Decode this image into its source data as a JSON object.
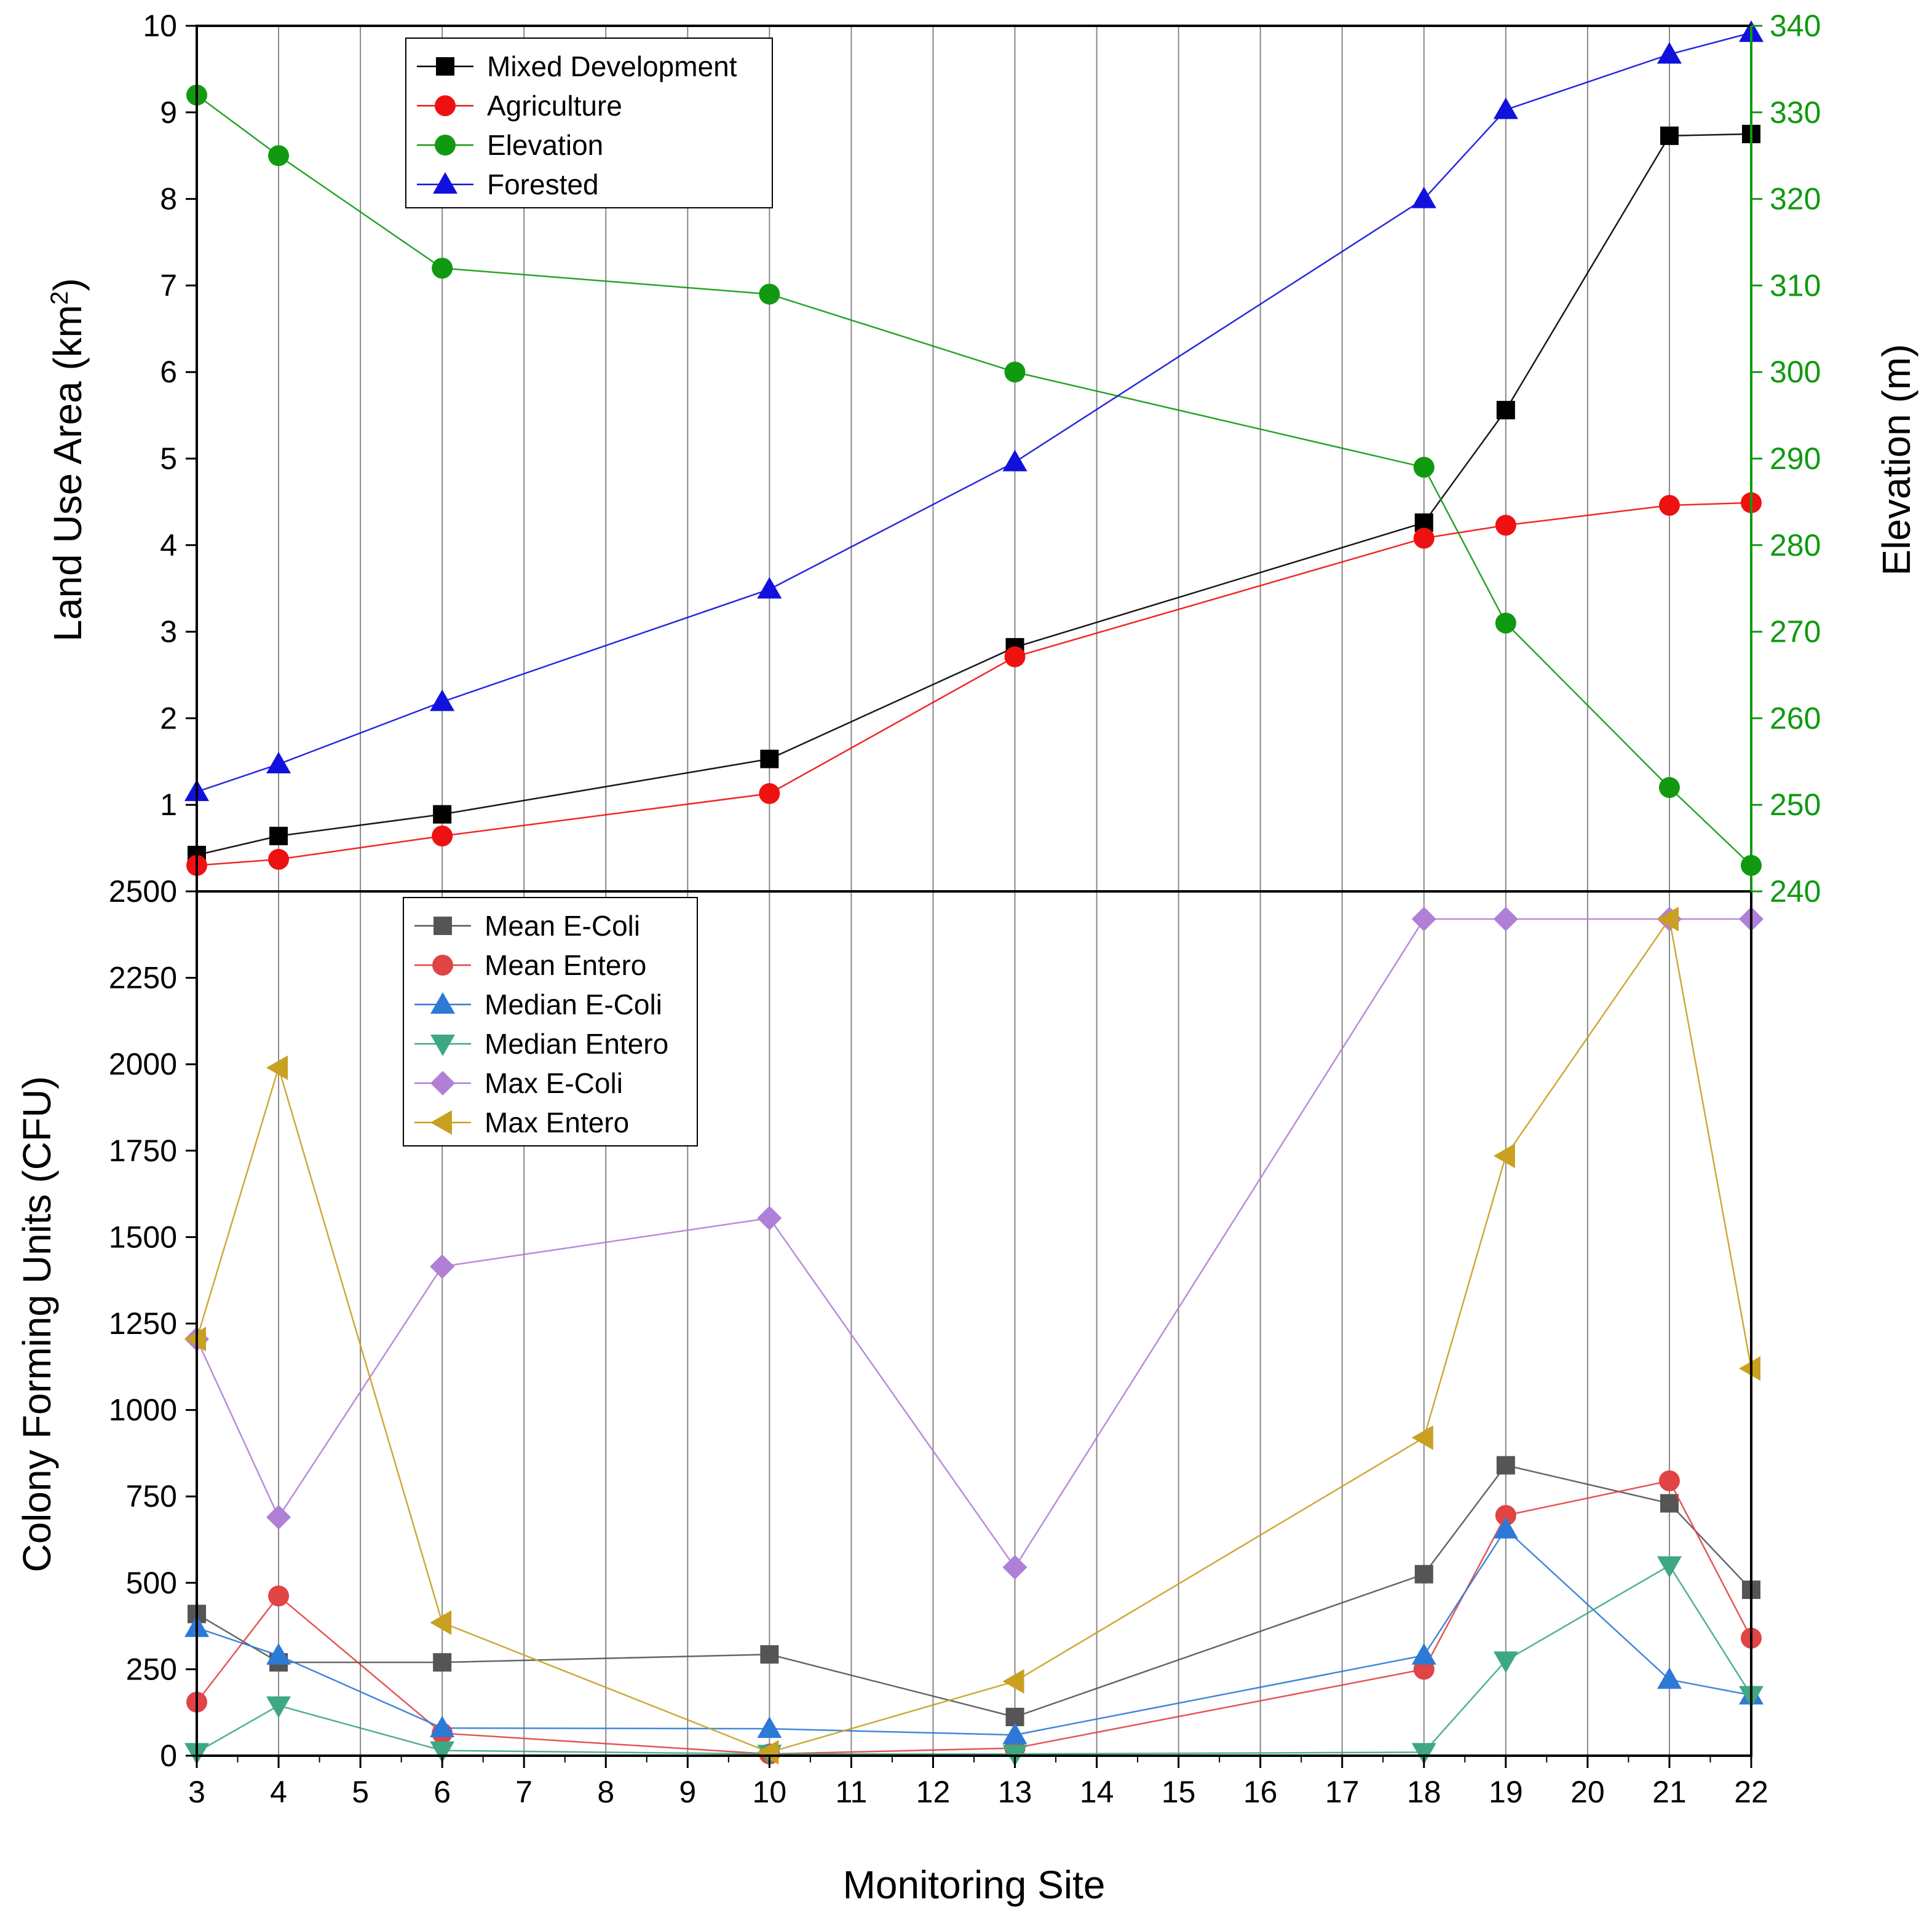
{
  "figure": {
    "xlabel": "Monitoring Site",
    "x_ticks": [
      3,
      4,
      5,
      6,
      7,
      8,
      9,
      10,
      11,
      12,
      13,
      14,
      15,
      16,
      17,
      18,
      19,
      20,
      21,
      22
    ],
    "x_range": [
      3,
      22
    ],
    "grid": "vertical lines at each site"
  },
  "chart_data": [
    {
      "type": "line",
      "panel": "top",
      "ylabel": "Land Use Area (km",
      "ylabel_superscript": "2",
      "ylabel_close": ")",
      "y2label": "Elevation (m)",
      "ylim": [
        0,
        10
      ],
      "y_ticks": [
        1,
        2,
        3,
        4,
        5,
        6,
        7,
        8,
        9,
        10
      ],
      "y2lim": [
        240,
        340
      ],
      "y2_ticks": [
        240,
        250,
        260,
        270,
        280,
        290,
        300,
        310,
        320,
        330,
        340
      ],
      "legend_position": "top-left",
      "x": [
        3,
        4,
        6,
        10,
        13,
        18,
        19,
        21,
        22
      ],
      "series": [
        {
          "name": "Mixed Development",
          "axis": "left",
          "color": "#000000",
          "marker": "square",
          "values": [
            0.42,
            0.64,
            0.89,
            1.53,
            2.82,
            4.26,
            5.56,
            8.73,
            8.75
          ]
        },
        {
          "name": "Agriculture",
          "axis": "left",
          "color": "#ee1111",
          "marker": "circle",
          "values": [
            0.3,
            0.37,
            0.64,
            1.13,
            2.71,
            4.08,
            4.23,
            4.46,
            4.49
          ]
        },
        {
          "name": "Elevation",
          "axis": "right",
          "color": "#119911",
          "marker": "circle",
          "values": [
            332,
            325,
            312,
            309,
            300,
            289,
            271,
            252,
            243
          ]
        },
        {
          "name": "Forested",
          "axis": "left",
          "color": "#1111dd",
          "marker": "triangle-up",
          "values": [
            1.15,
            1.47,
            2.19,
            3.49,
            4.96,
            8.0,
            9.03,
            9.67,
            9.92
          ]
        }
      ]
    },
    {
      "type": "line",
      "panel": "bottom",
      "ylabel": "Colony Forming Units (CFU)",
      "ylim": [
        0,
        2500
      ],
      "y_ticks": [
        0,
        250,
        500,
        750,
        1000,
        1250,
        1500,
        1750,
        2000,
        2250,
        2500
      ],
      "legend_position": "top-left",
      "x": [
        3,
        4,
        6,
        10,
        13,
        18,
        19,
        21,
        22
      ],
      "series": [
        {
          "name": "Mean E-Coli",
          "color": "#555555",
          "marker": "square",
          "values": [
            410,
            270,
            270,
            293,
            112,
            525,
            840,
            730,
            480
          ]
        },
        {
          "name": "Mean Entero",
          "color": "#e04444",
          "marker": "circle",
          "values": [
            155,
            462,
            65,
            5,
            22,
            250,
            695,
            795,
            340
          ]
        },
        {
          "name": "Median E-Coli",
          "color": "#2d7ad6",
          "marker": "triangle-up",
          "values": [
            370,
            290,
            80,
            78,
            60,
            290,
            655,
            220,
            175
          ]
        },
        {
          "name": "Median Entero",
          "color": "#3da882",
          "marker": "triangle-down",
          "values": [
            10,
            145,
            15,
            5,
            5,
            10,
            275,
            550,
            175
          ]
        },
        {
          "name": "Max E-Coli",
          "color": "#b07fd6",
          "marker": "diamond",
          "values": [
            1205,
            690,
            1415,
            1555,
            545,
            2420,
            2420,
            2420,
            2420
          ]
        },
        {
          "name": "Max Entero",
          "color": "#c9a020",
          "marker": "triangle-left",
          "values": [
            1205,
            1990,
            385,
            10,
            215,
            920,
            1735,
            2420,
            1120
          ]
        }
      ]
    }
  ]
}
